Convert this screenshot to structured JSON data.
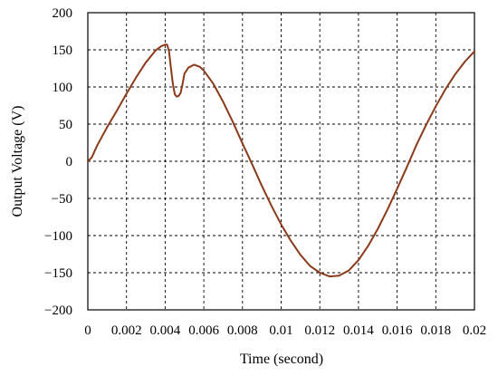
{
  "chart_data": {
    "type": "line",
    "title": "",
    "xlabel": "Time (second)",
    "ylabel": "Output Voltage (V)",
    "xlim": [
      0,
      0.02
    ],
    "ylim": [
      -200,
      200
    ],
    "grid": true,
    "x_ticks": [
      0,
      0.002,
      0.004,
      0.006,
      0.008,
      0.01,
      0.012,
      0.014,
      0.016,
      0.018,
      0.02
    ],
    "x_tick_labels": [
      "0",
      "0.002",
      "0.004",
      "0.006",
      "0.008",
      "0.01",
      "0.012",
      "0.014",
      "0.016",
      "0.018",
      "0.02"
    ],
    "y_ticks": [
      200,
      150,
      100,
      50,
      0,
      -50,
      -100,
      -150,
      -200
    ],
    "y_tick_labels": [
      "200",
      "150",
      "100",
      "50",
      "0",
      "−50",
      "−100",
      "−150",
      "−200"
    ],
    "line_color": "#8b3a1a",
    "series": [
      {
        "x": [
          0,
          0.0002,
          0.0005,
          0.001,
          0.0015,
          0.002,
          0.0025,
          0.003,
          0.0035,
          0.0038,
          0.004,
          0.0041,
          0.0042,
          0.0043,
          0.0044,
          0.0045,
          0.0046,
          0.0047,
          0.0048,
          0.0049,
          0.005,
          0.0052,
          0.0055,
          0.0058,
          0.006,
          0.0065,
          0.007,
          0.0075,
          0.008,
          0.0085,
          0.009,
          0.0095,
          0.01,
          0.0105,
          0.011,
          0.0115,
          0.012,
          0.0125,
          0.013,
          0.0135,
          0.014,
          0.0145,
          0.015,
          0.0155,
          0.016,
          0.0165,
          0.017,
          0.0175,
          0.018,
          0.0185,
          0.019,
          0.0195,
          0.02
        ],
        "y": [
          0,
          5,
          22,
          46,
          68,
          91,
          113,
          133,
          149,
          155,
          157,
          157,
          148,
          125,
          104,
          90,
          87,
          88,
          92,
          104,
          118,
          126,
          130,
          127,
          122,
          104,
          80,
          53,
          24,
          -4,
          -33,
          -60,
          -85,
          -107,
          -126,
          -141,
          -150,
          -155,
          -154,
          -147,
          -133,
          -114,
          -91,
          -65,
          -37,
          -8,
          22,
          49,
          74,
          97,
          117,
          134,
          148
        ]
      }
    ]
  }
}
